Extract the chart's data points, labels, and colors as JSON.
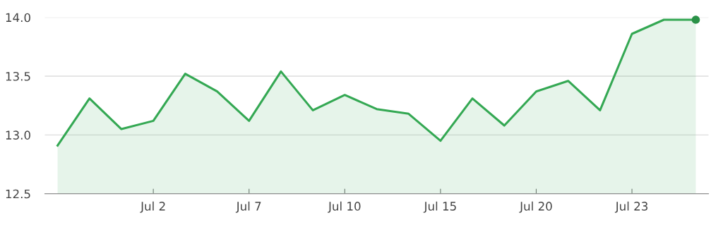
{
  "chart_data": {
    "type": "area",
    "categories": [
      null,
      null,
      null,
      "Jul 2",
      null,
      null,
      "Jul 7",
      null,
      null,
      "Jul 10",
      null,
      null,
      "Jul 15",
      null,
      null,
      "Jul 20",
      null,
      null,
      "Jul 23",
      null,
      null
    ],
    "series": [
      {
        "color": "#34a853",
        "values": [
          12.91,
          13.31,
          13.05,
          13.12,
          13.52,
          13.37,
          13.12,
          13.54,
          13.21,
          13.34,
          13.22,
          13.18,
          12.95,
          13.31,
          13.08,
          13.37,
          13.46,
          13.21,
          13.86,
          13.98,
          13.98
        ]
      },
      {
        "type": "scatter",
        "color": "#2a9147",
        "marker": "circle",
        "values": [
          null,
          null,
          null,
          null,
          null,
          null,
          null,
          null,
          null,
          null,
          null,
          null,
          null,
          null,
          null,
          null,
          null,
          null,
          null,
          null,
          13.98
        ]
      }
    ],
    "ylim": [
      12.5,
      14.0
    ],
    "yticks": [
      12.5,
      {
        "value": 13,
        "label": "13.0"
      },
      13.5,
      {
        "value": 14,
        "label": "14.0"
      }
    ],
    "grid": "y",
    "marker": "none",
    "line_style": "solid"
  }
}
